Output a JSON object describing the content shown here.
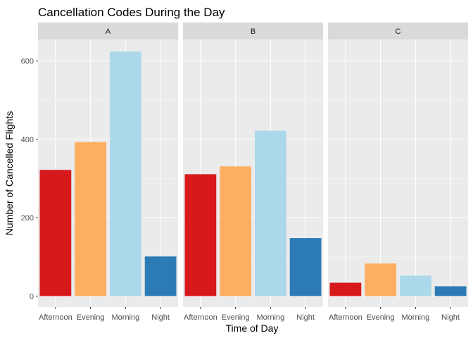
{
  "chart_data": {
    "type": "bar",
    "title": "Cancellation Codes During the Day",
    "xlabel": "Time of Day",
    "ylabel": "Number of Cancelled Flights",
    "ylim": [
      -28,
      655
    ],
    "yticks": [
      0,
      200,
      400,
      600
    ],
    "yticks_text": [
      "0",
      "200",
      "400",
      "600"
    ],
    "categories": [
      "Afternoon",
      "Evening",
      "Morning",
      "Night"
    ],
    "category_colors": [
      "#d7191c",
      "#fdae61",
      "#abd9e9",
      "#2c7bb6"
    ],
    "grid": true,
    "legend": "none",
    "facets": [
      {
        "label": "A",
        "values": [
          322,
          393,
          624,
          101
        ]
      },
      {
        "label": "B",
        "values": [
          311,
          331,
          422,
          148
        ]
      },
      {
        "label": "C",
        "values": [
          34,
          83,
          52,
          25
        ]
      }
    ]
  }
}
